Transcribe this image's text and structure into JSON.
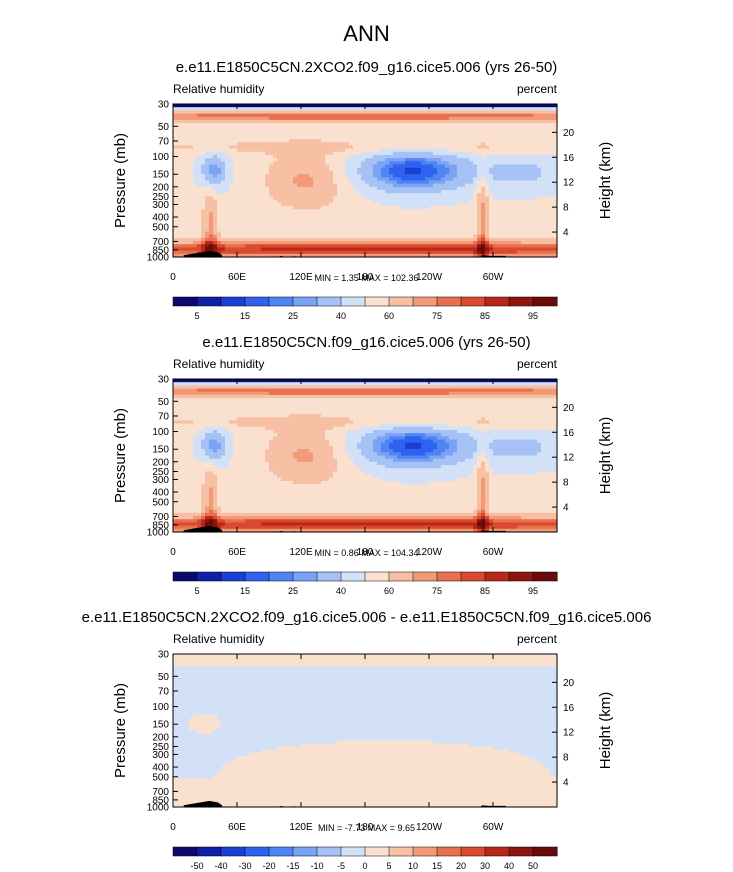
{
  "figure": {
    "title": "ANN",
    "colors": {
      "map_stroke": "#000000",
      "land": "#000000",
      "bg": "#ffffff"
    }
  },
  "panels": [
    {
      "title": "e.e11.E1850C5CN.2XCO2.f09_g16.cice5.006 (yrs 26-50)",
      "left_label": "Relative humidity",
      "right_label": "percent",
      "stats": "MIN =   1.35  MAX = 102.36",
      "kind": "rh"
    },
    {
      "title": "e.e11.E1850C5CN.f09_g16.cice5.006 (yrs 26-50)",
      "left_label": "Relative humidity",
      "right_label": "percent",
      "stats": "MIN =   0.86  MAX = 104.34",
      "kind": "rh"
    },
    {
      "title": "e.e11.E1850C5CN.2XCO2.f09_g16.cice5.006 - e.e11.E1850C5CN.f09_g16.cice5.006",
      "left_label": "Relative humidity",
      "right_label": "percent",
      "stats": "MIN =  -7.73  MAX =  9.65",
      "kind": "diff"
    }
  ],
  "chart_data": [
    {
      "type": "heatmap",
      "title": "e.e11.E1850C5CN.2XCO2.f09_g16.cice5.006 (yrs 26-50)",
      "subtitle_left": "Relative humidity",
      "subtitle_right": "percent",
      "xlabel": "",
      "ylabel": "Pressure (mb)",
      "ylabel_right": "Height (km)",
      "x_ticks": [
        "0",
        "60E",
        "120E",
        "180",
        "120W",
        "60W"
      ],
      "y_ticks": [
        "30",
        "50",
        "70",
        "100",
        "150",
        "200",
        "250",
        "300",
        "400",
        "500",
        "700",
        "850",
        "1000"
      ],
      "y_right_ticks": [
        "20",
        "16",
        "12",
        "8",
        "4"
      ],
      "colorbar_levels": [
        5,
        10,
        15,
        20,
        25,
        30,
        40,
        50,
        60,
        70,
        75,
        80,
        85,
        90,
        95
      ],
      "colorbar_labels": [
        "5",
        "15",
        "25",
        "40",
        "60",
        "75",
        "85",
        "95"
      ],
      "min": 1.35,
      "max": 102.36
    },
    {
      "type": "heatmap",
      "title": "e.e11.E1850C5CN.f09_g16.cice5.006 (yrs 26-50)",
      "subtitle_left": "Relative humidity",
      "subtitle_right": "percent",
      "xlabel": "",
      "ylabel": "Pressure (mb)",
      "ylabel_right": "Height (km)",
      "x_ticks": [
        "0",
        "60E",
        "120E",
        "180",
        "120W",
        "60W"
      ],
      "y_ticks": [
        "30",
        "50",
        "70",
        "100",
        "150",
        "200",
        "250",
        "300",
        "400",
        "500",
        "700",
        "850",
        "1000"
      ],
      "y_right_ticks": [
        "20",
        "16",
        "12",
        "8",
        "4"
      ],
      "colorbar_levels": [
        5,
        10,
        15,
        20,
        25,
        30,
        40,
        50,
        60,
        70,
        75,
        80,
        85,
        90,
        95
      ],
      "colorbar_labels": [
        "5",
        "15",
        "25",
        "40",
        "60",
        "75",
        "85",
        "95"
      ],
      "min": 0.86,
      "max": 104.34
    },
    {
      "type": "heatmap",
      "title": "e.e11.E1850C5CN.2XCO2.f09_g16.cice5.006 - e.e11.E1850C5CN.f09_g16.cice5.006",
      "subtitle_left": "Relative humidity",
      "subtitle_right": "percent",
      "xlabel": "",
      "ylabel": "Pressure (mb)",
      "ylabel_right": "Height (km)",
      "x_ticks": [
        "0",
        "60E",
        "120E",
        "180",
        "120W",
        "60W"
      ],
      "y_ticks": [
        "30",
        "50",
        "70",
        "100",
        "150",
        "200",
        "250",
        "300",
        "400",
        "500",
        "700",
        "850",
        "1000"
      ],
      "y_right_ticks": [
        "20",
        "16",
        "12",
        "8",
        "4"
      ],
      "colorbar_levels": [
        -50,
        -40,
        -30,
        -20,
        -15,
        -10,
        -5,
        0,
        5,
        10,
        15,
        20,
        30,
        40,
        50
      ],
      "colorbar_labels": [
        "-50",
        "-40",
        "-30",
        "-20",
        "-15",
        "-10",
        "-5",
        "0",
        "5",
        "10",
        "15",
        "20",
        "30",
        "40",
        "50"
      ],
      "min": -7.73,
      "max": 9.65
    }
  ],
  "colorbar_palette": [
    "#0a0a6e",
    "#0f1fa8",
    "#1a3fd6",
    "#2f62ee",
    "#4f84f4",
    "#7aa3f5",
    "#a6c2f5",
    "#d2e1f7",
    "#f9e0cf",
    "#f7c0a4",
    "#f29a78",
    "#e8704f",
    "#d94a2e",
    "#b9261a",
    "#8e1510",
    "#6b0a0a"
  ]
}
